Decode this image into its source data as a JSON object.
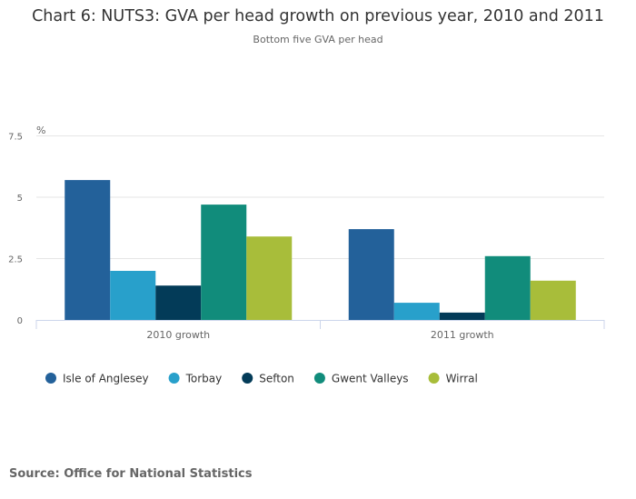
{
  "chart_data": {
    "type": "bar",
    "title": "Chart 6: NUTS3: GVA per head growth on previous year, 2010 and 2011",
    "subtitle": "Bottom five GVA per head",
    "ylabel": "%",
    "xlabel": "",
    "ylim": [
      0,
      7.5
    ],
    "yticks": [
      0,
      2.5,
      5,
      7.5
    ],
    "ytick_labels": [
      "0",
      "2.5",
      "5",
      "7.5"
    ],
    "grid": true,
    "legend_position": "bottom-left",
    "categories": [
      "2010 growth",
      "2011 growth"
    ],
    "series": [
      {
        "name": "Isle of Anglesey",
        "color": "#23619a",
        "values": [
          5.7,
          3.7
        ]
      },
      {
        "name": "Torbay",
        "color": "#28a0cb",
        "values": [
          2.0,
          0.7
        ]
      },
      {
        "name": "Sefton",
        "color": "#033b58",
        "values": [
          1.4,
          0.3
        ]
      },
      {
        "name": "Gwent Valleys",
        "color": "#118c7b",
        "values": [
          4.7,
          2.6
        ]
      },
      {
        "name": "Wirral",
        "color": "#a8bd3a",
        "values": [
          3.4,
          1.6
        ]
      }
    ]
  },
  "source": "Source: Office for National Statistics"
}
